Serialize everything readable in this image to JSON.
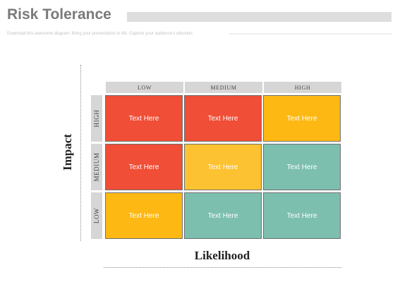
{
  "header": {
    "title": "Risk Tolerance",
    "subtitle": "Download this awesome diagram. Bring your presentation to life. Capture your audience's attention."
  },
  "matrix": {
    "y_axis_label": "Impact",
    "x_axis_label": "Likelihood",
    "columns": [
      "LOW",
      "MEDIUM",
      "HIGH"
    ],
    "rows": [
      "HIGH",
      "MEDIUM",
      "LOW"
    ],
    "cells": [
      [
        {
          "text": "Text Here",
          "color": "#f04e36"
        },
        {
          "text": "Text Here",
          "color": "#f04e36"
        },
        {
          "text": "Text Here",
          "color": "#fdb813"
        }
      ],
      [
        {
          "text": "Text Here",
          "color": "#f04e36"
        },
        {
          "text": "Text Here",
          "color": "#fdc232"
        },
        {
          "text": "Text Here",
          "color": "#7dbfaf"
        }
      ],
      [
        {
          "text": "Text Here",
          "color": "#fdb813"
        },
        {
          "text": "Text Here",
          "color": "#7dbfaf"
        },
        {
          "text": "Text Here",
          "color": "#7dbfaf"
        }
      ]
    ]
  }
}
